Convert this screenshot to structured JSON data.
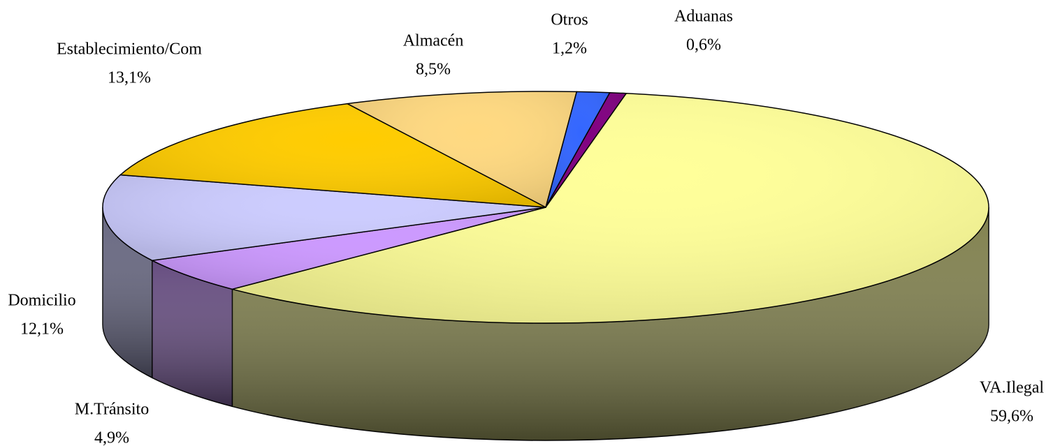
{
  "chart_data": {
    "type": "pie",
    "categories": [
      "Otros",
      "Aduanas",
      "VA.Ilegal",
      "M.Tránsito",
      "Domicilio",
      "Establecimiento/Com",
      "Almacén"
    ],
    "values": [
      1.2,
      0.6,
      59.6,
      4.9,
      12.1,
      13.1,
      8.5
    ],
    "value_labels": [
      "1,2%",
      "0,6%",
      "59,6%",
      "4,9%",
      "12,1%",
      "13,1%",
      "8,5%"
    ],
    "colors": [
      "#3366ff",
      "#800080",
      "#ffff99",
      "#cc99ff",
      "#ccccff",
      "#ffcc00",
      "#ffd980"
    ]
  }
}
